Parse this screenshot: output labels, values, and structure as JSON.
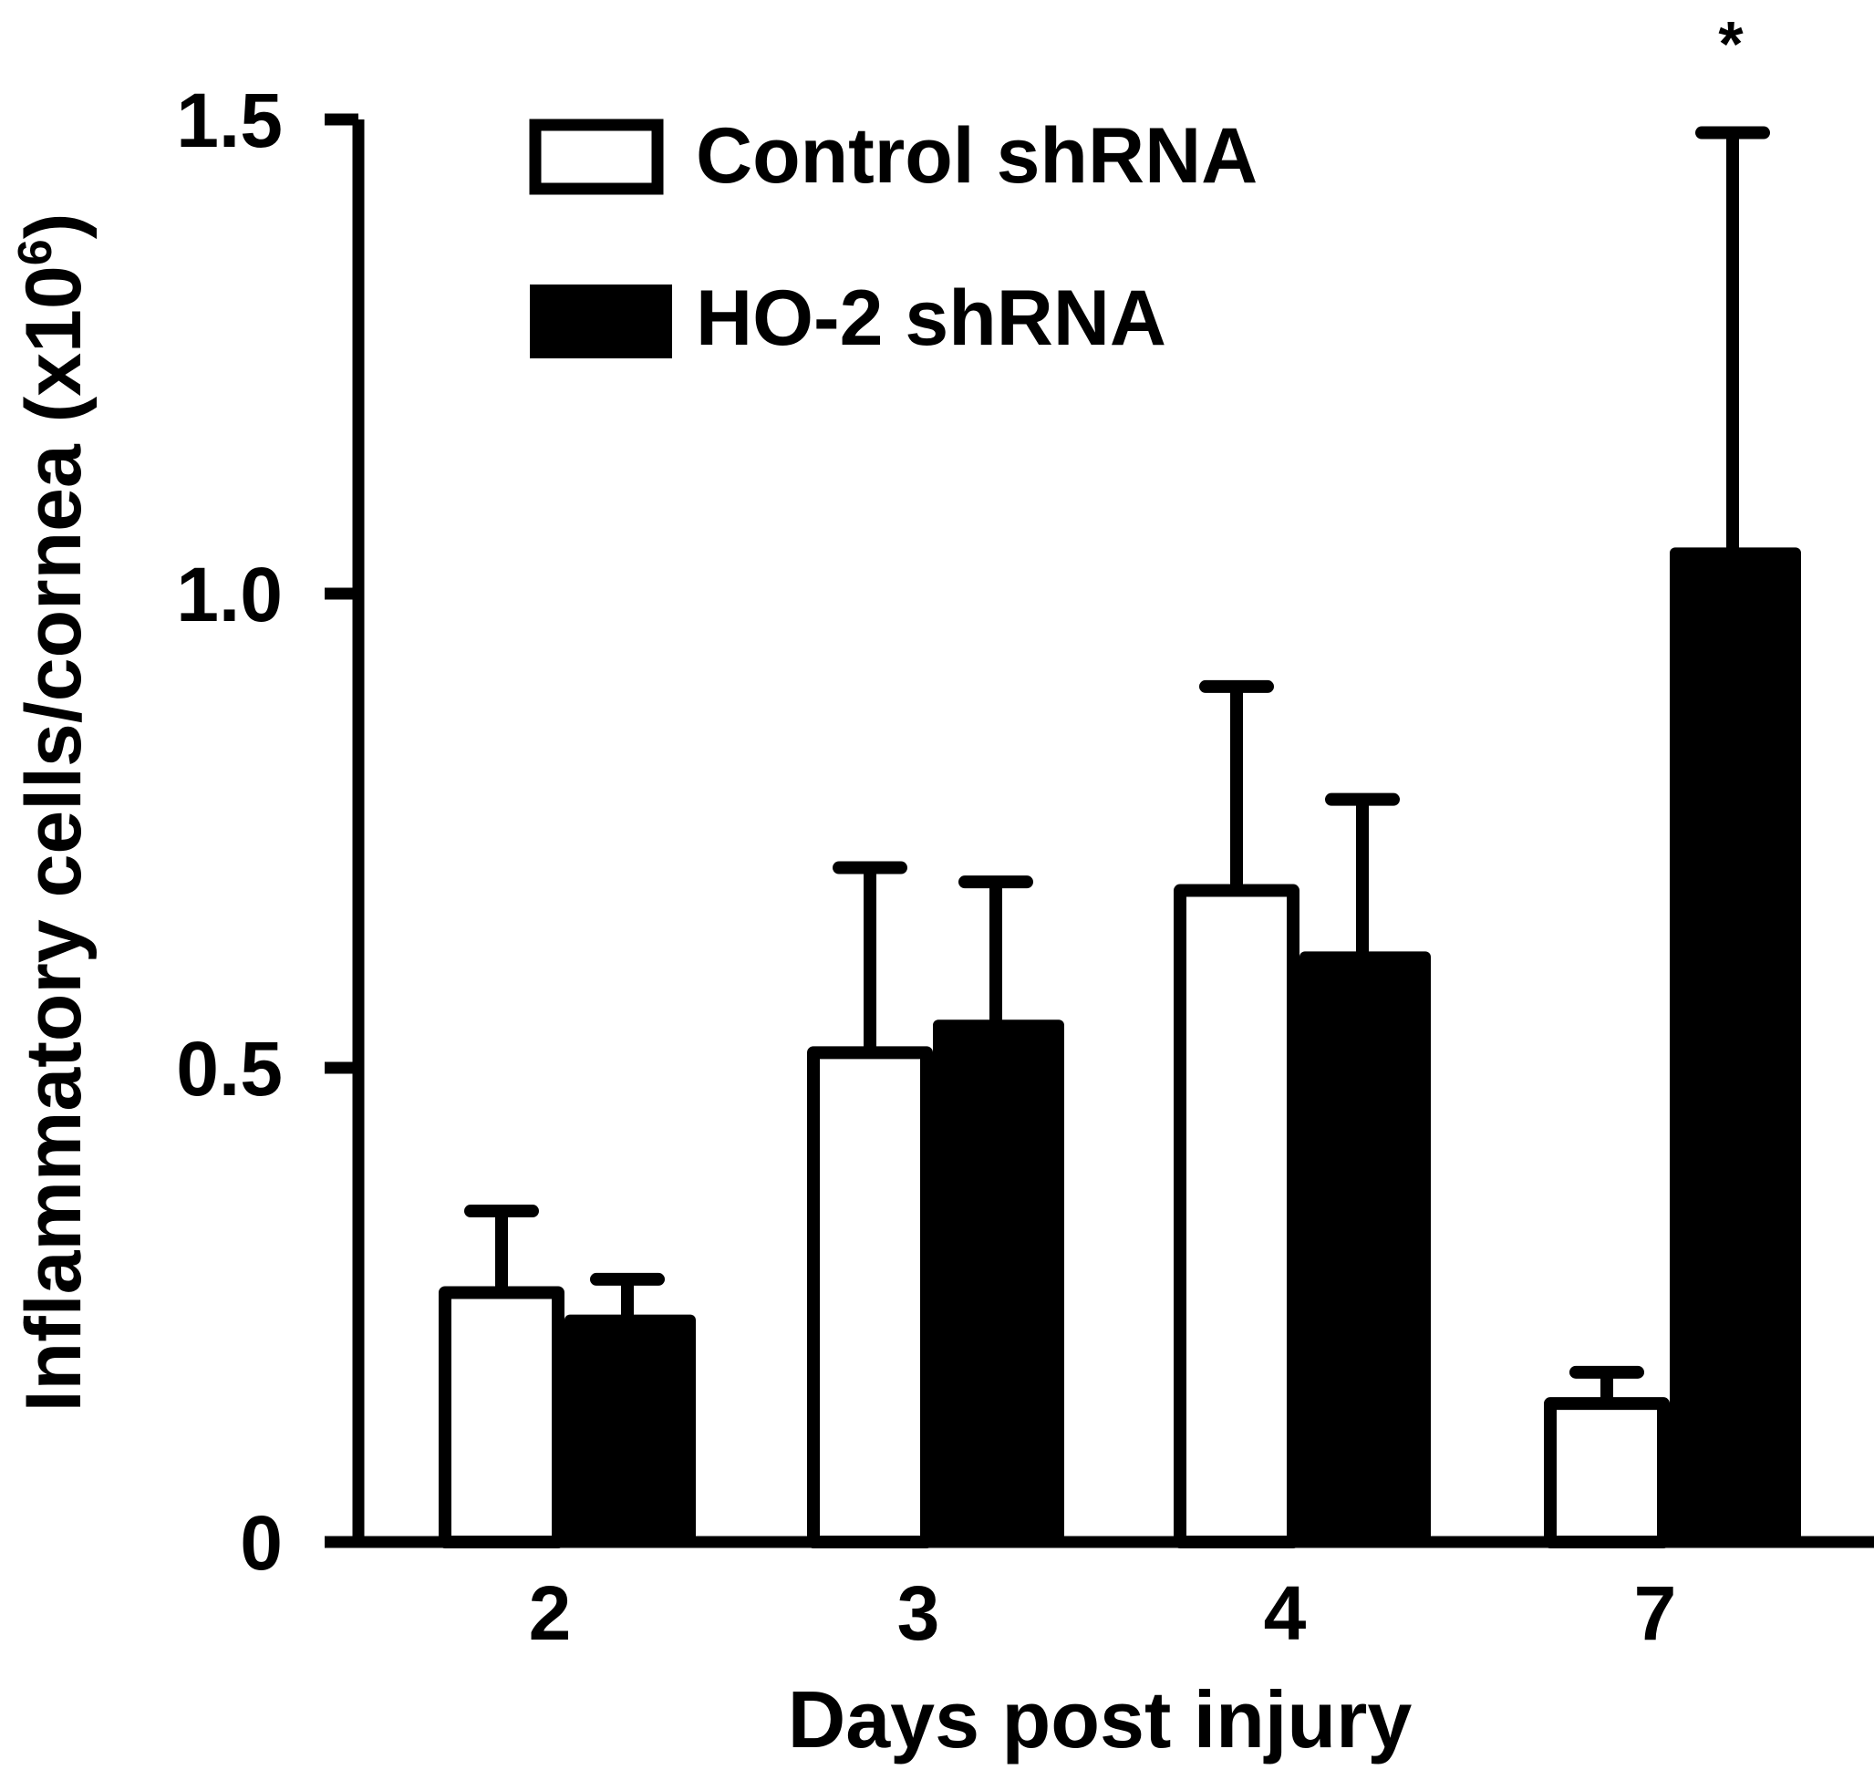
{
  "chart_data": {
    "type": "bar",
    "title": "",
    "xlabel": "Days post injury",
    "ylabel": "Inflammatory cells/cornea (x10",
    "ylabel_sup": "6",
    "ylabel_end": ")",
    "ylim": [
      0,
      1.5
    ],
    "yticks": [
      0,
      0.5,
      1.0,
      1.5
    ],
    "ytick_labels": [
      "0",
      "0.5",
      "1.0",
      "1.5"
    ],
    "categories": [
      "2",
      "3",
      "4",
      "7"
    ],
    "series": [
      {
        "name": "Control shRNA",
        "fill": "#ffffff",
        "values": [
          0.263,
          0.516,
          0.687,
          0.146
        ],
        "error_upper": [
          0.349,
          0.711,
          0.902,
          0.179
        ]
      },
      {
        "name": "HO-2 shRNA",
        "fill": "#000000",
        "values": [
          0.233,
          0.544,
          0.616,
          1.042
        ],
        "error_upper": [
          0.277,
          0.696,
          0.783,
          1.486
        ]
      }
    ],
    "annotations": [
      {
        "category": "7",
        "series": "HO-2 shRNA",
        "text": "*"
      }
    ],
    "legend_position": "top-left",
    "grid": false
  }
}
